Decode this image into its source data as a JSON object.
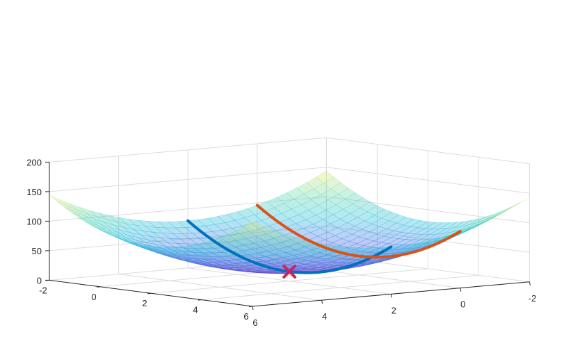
{
  "chart_data": {
    "type": "surface",
    "title": "",
    "xlabel": "",
    "ylabel": "",
    "zlabel": "",
    "xlim": [
      -2,
      6
    ],
    "ylim": [
      -2,
      6
    ],
    "zlim": [
      0,
      200
    ],
    "x_ticks": [
      "-2",
      "0",
      "2",
      "4",
      "6"
    ],
    "y_ticks": [
      "6",
      "4",
      "2",
      "0",
      "-2"
    ],
    "z_ticks": [
      "0",
      "50",
      "100",
      "150",
      "200"
    ],
    "grid": true,
    "surface": {
      "function": "z = 4*(x-2)^2 + 4*(y-2)^2 + 16",
      "colormap": "parula (purple-blue-cyan-green-yellow)",
      "alpha": 0.35
    },
    "curves": [
      {
        "color": "#0072bd",
        "fixed": "y = 2",
        "points": [
          {
            "x": -2,
            "y": 2,
            "z": 80
          },
          {
            "x": -1,
            "y": 2,
            "z": 52
          },
          {
            "x": 0,
            "y": 2,
            "z": 32
          },
          {
            "x": 1,
            "y": 2,
            "z": 20
          },
          {
            "x": 2,
            "y": 2,
            "z": 16
          },
          {
            "x": 3,
            "y": 2,
            "z": 20
          },
          {
            "x": 4,
            "y": 2,
            "z": 32
          },
          {
            "x": 5,
            "y": 2,
            "z": 52
          },
          {
            "x": 6,
            "y": 2,
            "z": 80
          }
        ]
      },
      {
        "color": "#d95319",
        "fixed": "y = 0",
        "points": [
          {
            "x": -2,
            "y": 0,
            "z": 96
          },
          {
            "x": 0,
            "y": 0,
            "z": 48
          },
          {
            "x": 2,
            "y": 0,
            "z": 32
          },
          {
            "x": 4,
            "y": 0,
            "z": 48
          },
          {
            "x": 6,
            "y": 0,
            "z": 96
          }
        ]
      }
    ],
    "marker": {
      "shape": "x",
      "color": "#d0205a",
      "x": 2,
      "y": 2,
      "z": 16
    }
  }
}
